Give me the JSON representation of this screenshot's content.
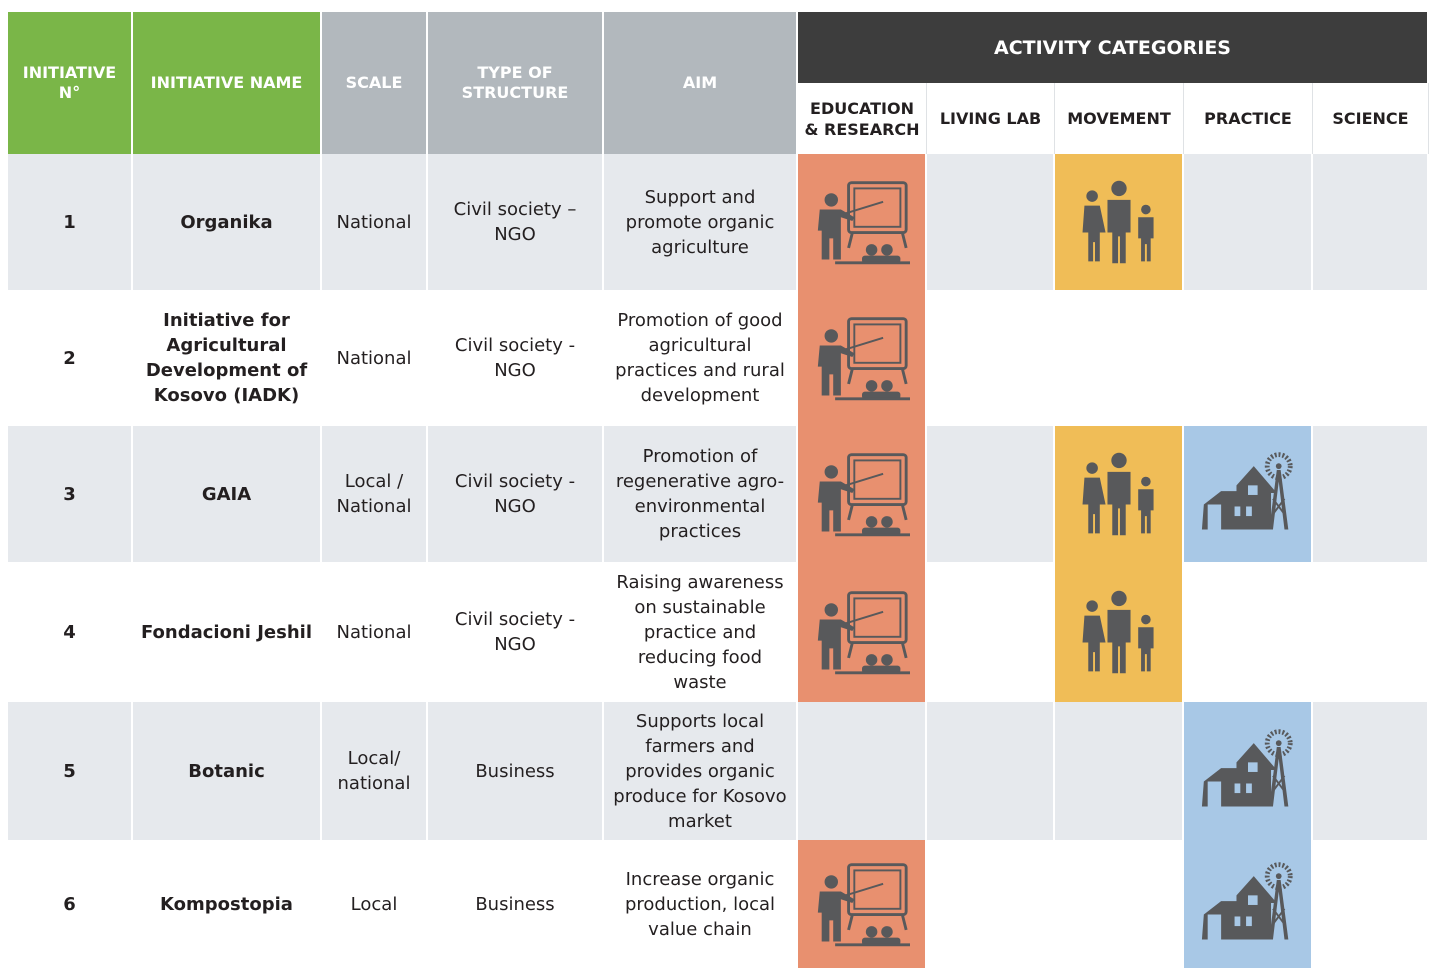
{
  "header": {
    "initiative_no": "INITIATIVE N°",
    "initiative_name": "INITIATIVE NAME",
    "scale": "SCALE",
    "type_of_structure": "TYPE OF STRUCTURE",
    "aim": "AIM",
    "activity_categories": "ACTIVITY CATEGORIES",
    "categories": [
      "EDUCATION & RESEARCH",
      "LIVING LAB",
      "MOVEMENT",
      "PRACTICE",
      "SCIENCE"
    ]
  },
  "rows": [
    {
      "no": 1,
      "name": "Organika",
      "scale": "National",
      "type": "Civil society – NGO",
      "aim": "Support and promote organic agriculture",
      "activities": [
        true,
        false,
        true,
        false,
        false
      ]
    },
    {
      "no": 2,
      "name": "Initiative for Agricultural Development of Kosovo (IADK)",
      "scale": "National",
      "type": "Civil society - NGO",
      "aim": "Promotion of good agricultural practices and rural development",
      "activities": [
        true,
        false,
        false,
        false,
        false
      ]
    },
    {
      "no": 3,
      "name": "GAIA",
      "scale": "Local / National",
      "type": "Civil society - NGO",
      "aim": "Promotion of regenerative agro-environmental practices",
      "activities": [
        true,
        false,
        true,
        true,
        false
      ]
    },
    {
      "no": 4,
      "name": "Fondacioni Jeshil",
      "scale": "National",
      "type": "Civil society - NGO",
      "aim": "Raising awareness on sustainable practice and reducing food waste",
      "activities": [
        true,
        false,
        true,
        false,
        false
      ]
    },
    {
      "no": 5,
      "name": "Botanic",
      "scale": "Local/ national",
      "type": "Business",
      "aim": "Supports local farmers and provides organic produce for Kosovo market",
      "activities": [
        false,
        false,
        false,
        true,
        false
      ]
    },
    {
      "no": 6,
      "name": "Kompostopia",
      "scale": "Local",
      "type": "Business",
      "aim": "Increase organic production, local value chain",
      "activities": [
        true,
        false,
        false,
        true,
        false
      ]
    }
  ]
}
